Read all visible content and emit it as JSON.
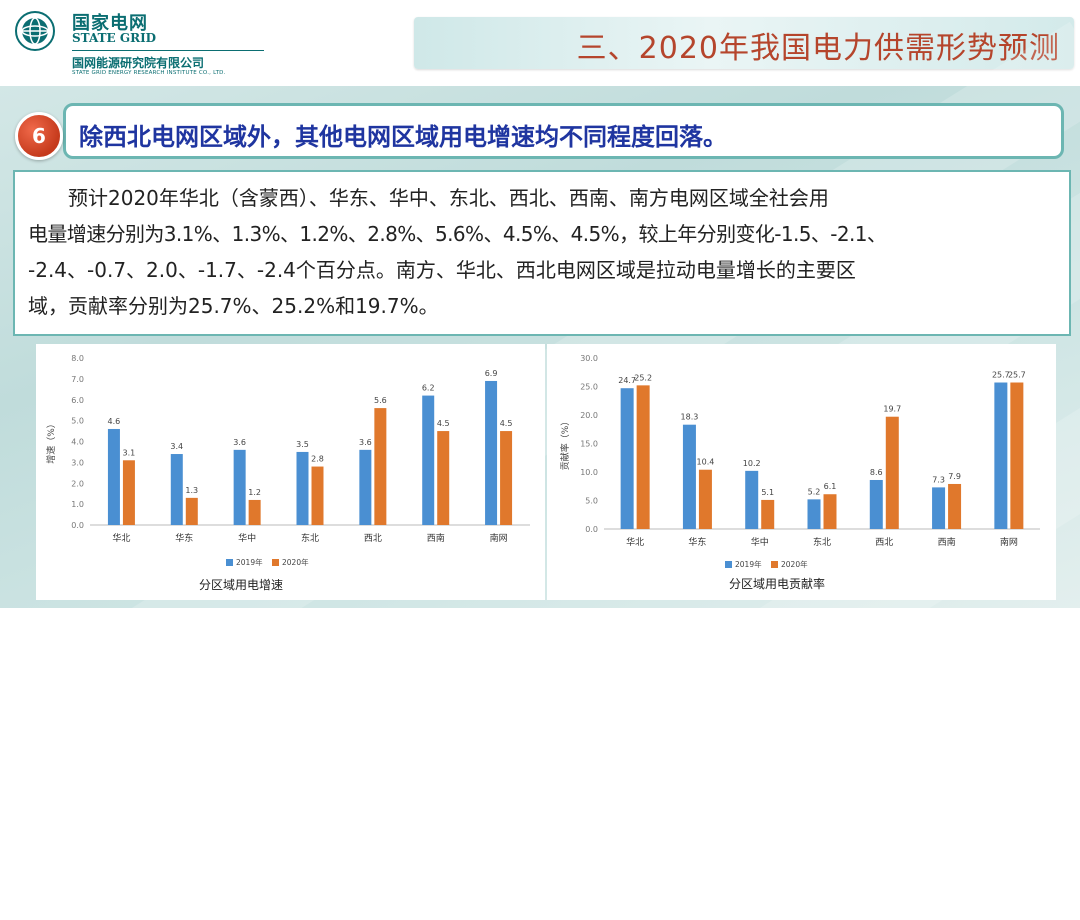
{
  "header": {
    "brand_cn": "国家电网",
    "brand_en": "STATE GRID",
    "org_cn": "国网能源研究院有限公司",
    "org_en": "STATE GRID ENERGY RESEARCH INSTITUTE CO., LTD.",
    "title": "三、2020年我国电力供需形势预测"
  },
  "section": {
    "number": "6",
    "headline": "除西北电网区域外，其他电网区域用电增速均不同程度回落。"
  },
  "paragraph": [
    "预计2020年华北（含蒙西）、华东、华中、东北、西北、西南、南方电网区域全社会用",
    "电量增速分别为3.1%、1.3%、1.2%、2.8%、5.6%、4.5%、4.5%，较上年分别变化-1.5、-2.1、",
    "-2.4、-0.7、2.0、-1.7、-2.4个百分点。南方、华北、西北电网区域是拉动电量增长的主要区",
    "域，贡献率分别为25.7%、25.2%和19.7%。"
  ],
  "colors": {
    "series_2019": "#4a8fd2",
    "series_2020": "#e0782c",
    "accent": "#b5452c",
    "headline": "#1f35a0"
  },
  "chart_data": [
    {
      "type": "bar",
      "title": "分区域用电增速",
      "ylabel": "增速（%）",
      "categories": [
        "华北",
        "华东",
        "华中",
        "东北",
        "西北",
        "西南",
        "南网"
      ],
      "series": [
        {
          "name": "2019年",
          "values": [
            4.6,
            3.4,
            3.6,
            3.5,
            3.6,
            6.2,
            6.9
          ]
        },
        {
          "name": "2020年",
          "values": [
            3.1,
            1.3,
            1.2,
            2.8,
            5.6,
            4.5,
            4.5
          ]
        }
      ],
      "ylim": [
        0,
        8
      ],
      "yticks": [
        "0.0",
        "1.0",
        "2.0",
        "3.0",
        "4.0",
        "5.0",
        "6.0",
        "7.0",
        "8.0"
      ],
      "grid": false,
      "legend": "bottom"
    },
    {
      "type": "bar",
      "title": "分区域用电贡献率",
      "ylabel": "贡献率（%）",
      "categories": [
        "华北",
        "华东",
        "华中",
        "东北",
        "西北",
        "西南",
        "南网"
      ],
      "series": [
        {
          "name": "2019年",
          "values": [
            24.7,
            18.3,
            10.2,
            5.2,
            8.6,
            7.3,
            25.7
          ]
        },
        {
          "name": "2020年",
          "values": [
            25.2,
            10.4,
            5.1,
            6.1,
            19.7,
            7.9,
            25.7
          ]
        }
      ],
      "ylim": [
        0,
        30
      ],
      "yticks": [
        "0.0",
        "5.0",
        "10.0",
        "15.0",
        "20.0",
        "25.0",
        "30.0"
      ],
      "grid": false,
      "legend": "bottom"
    }
  ]
}
